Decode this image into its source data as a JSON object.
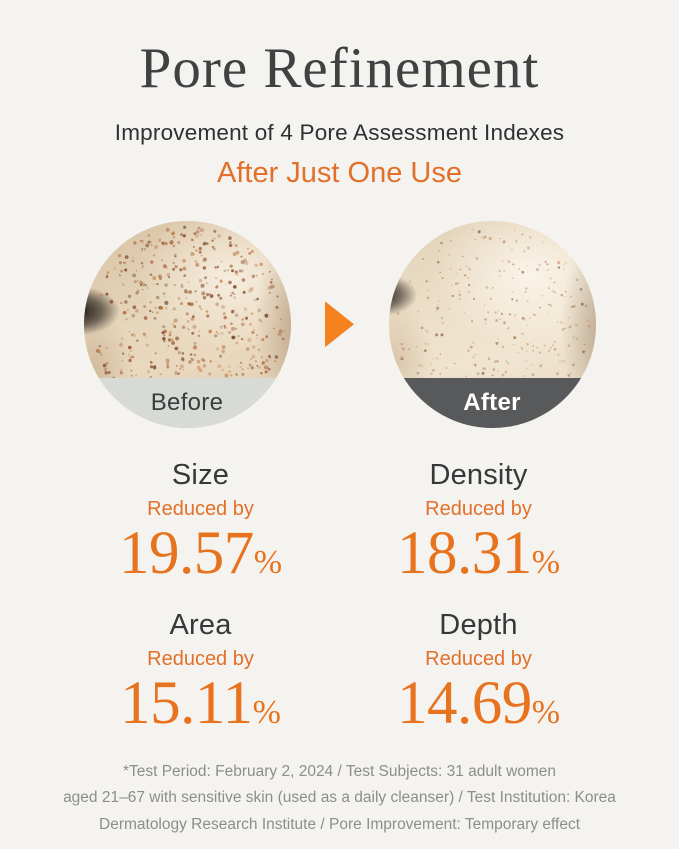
{
  "header": {
    "title": "Pore Refinement",
    "subtitle": "Improvement of 4 Pore Assessment Indexes",
    "tagline": "After Just One Use"
  },
  "comparison": {
    "before_label": "Before",
    "after_label": "After",
    "arrow_icon": "arrow-right-icon"
  },
  "stats": [
    {
      "name": "Size",
      "reduced_label": "Reduced by",
      "value": "19.57",
      "unit": "%"
    },
    {
      "name": "Density",
      "reduced_label": "Reduced by",
      "value": "18.31",
      "unit": "%"
    },
    {
      "name": "Area",
      "reduced_label": "Reduced by",
      "value": "15.11",
      "unit": "%"
    },
    {
      "name": "Depth",
      "reduced_label": "Reduced by",
      "value": "14.69",
      "unit": "%"
    }
  ],
  "footnote": {
    "lines": [
      "*Test Period: February 2, 2024 / Test Subjects: 31 adult women",
      "aged 21–67 with sensitive skin (used as a daily cleanser) / Test Institution: Korea",
      "Dermatology Research Institute / Pore Improvement: Temporary effect"
    ]
  },
  "colors": {
    "accent_orange": "#E2702A",
    "arrow_orange": "#F5821F",
    "value_orange": "#E8731E",
    "background": "#F4F3F0",
    "heading_dark": "#3F4142",
    "before_band": "#D8DAD5",
    "after_band": "#58595B"
  }
}
